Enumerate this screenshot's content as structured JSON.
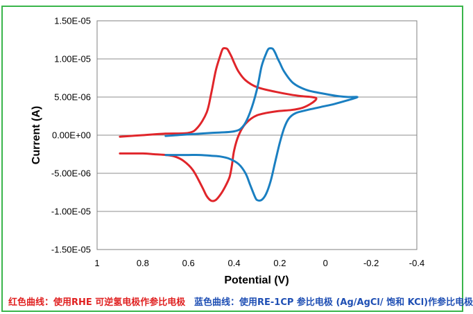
{
  "chart_data": {
    "type": "line",
    "xlabel": "Potential (V)",
    "ylabel": "Current (A)",
    "xlim": [
      1,
      -0.4
    ],
    "ylim": [
      -1.5e-05,
      1.5e-05
    ],
    "x_ticks": [
      "1",
      "0.8",
      "0.6",
      "0.4",
      "0.2",
      "0",
      "-0.2",
      "-0.4"
    ],
    "y_ticks": [
      "1.50E-05",
      "1.00E-05",
      "5.00E-06",
      "0.00E+00",
      "-5.00E-06",
      "-1.00E-05",
      "-1.50E-05"
    ],
    "grid": "horizontal",
    "legend": "none",
    "series": [
      {
        "color": "#e0252a",
        "x": [
          0.9,
          0.8,
          0.7,
          0.6,
          0.56,
          0.52,
          0.5,
          0.48,
          0.46,
          0.45,
          0.44,
          0.43,
          0.42,
          0.41,
          0.4,
          0.38,
          0.35,
          0.3,
          0.22,
          0.15,
          0.1,
          0.06,
          0.04,
          0.06,
          0.1,
          0.15,
          0.22,
          0.3,
          0.35,
          0.38,
          0.4,
          0.41,
          0.42,
          0.44,
          0.46,
          0.48,
          0.5,
          0.52,
          0.54,
          0.58,
          0.62,
          0.66,
          0.7,
          0.75,
          0.8,
          0.9
        ],
        "y": [
          -2e-07,
          0.0,
          2e-07,
          3e-07,
          1e-06,
          3e-06,
          5.5e-06,
          8.5e-06,
          1.05e-05,
          1.13e-05,
          1.14e-05,
          1.13e-05,
          1.08e-05,
          1.02e-05,
          9.5e-06,
          8.3e-06,
          7.2e-06,
          6.3e-06,
          5.7e-06,
          5.3e-06,
          5.1e-06,
          5e-06,
          4.8e-06,
          4.2e-06,
          3.6e-06,
          3.3e-06,
          3.1e-06,
          2.6e-06,
          1.5e-06,
          0.0,
          -2e-06,
          -4e-06,
          -5.5e-06,
          -6.8e-06,
          -7.8e-06,
          -8.5e-06,
          -8.6e-06,
          -8e-06,
          -6.8e-06,
          -4.6e-06,
          -3.4e-06,
          -2.8e-06,
          -2.6e-06,
          -2.5e-06,
          -2.4e-06,
          -2.4e-06
        ]
      },
      {
        "color": "#1a7fc1",
        "x": [
          0.7,
          0.6,
          0.5,
          0.4,
          0.36,
          0.33,
          0.3,
          0.28,
          0.26,
          0.25,
          0.24,
          0.23,
          0.22,
          0.21,
          0.2,
          0.18,
          0.14,
          0.08,
          0.0,
          -0.06,
          -0.1,
          -0.14,
          -0.1,
          -0.04,
          0.02,
          0.08,
          0.13,
          0.16,
          0.18,
          0.2,
          0.22,
          0.24,
          0.26,
          0.28,
          0.3,
          0.31,
          0.33,
          0.35,
          0.38,
          0.42,
          0.46,
          0.5,
          0.55,
          0.6,
          0.65,
          0.7
        ],
        "y": [
          -1e-07,
          1e-07,
          3e-07,
          5e-07,
          1.2e-06,
          3e-06,
          6e-06,
          9e-06,
          1.07e-05,
          1.13e-05,
          1.14e-05,
          1.13e-05,
          1.08e-05,
          1.01e-05,
          9.5e-06,
          8.3e-06,
          6.8e-06,
          5.9e-06,
          5.4e-06,
          5.1e-06,
          5e-06,
          5e-06,
          4.6e-06,
          4.1e-06,
          3.7e-06,
          3.3e-06,
          2.9e-06,
          2.2e-06,
          1e-06,
          -1e-06,
          -3.5e-06,
          -6e-06,
          -7.7e-06,
          -8.5e-06,
          -8.5e-06,
          -8e-06,
          -6.5e-06,
          -5e-06,
          -3.8e-06,
          -3.1e-06,
          -2.8e-06,
          -2.7e-06,
          -2.6e-06,
          -2.6e-06,
          -2.6e-06,
          -2.6e-06
        ]
      }
    ]
  },
  "captions": {
    "red": "红色曲线：使用RHE 可逆氢电极作参比电极",
    "blue": "蓝色曲线：使用RE-1CP 参比电极 (Ag/AgCl/ 饱和 KCl)作参比电极"
  }
}
